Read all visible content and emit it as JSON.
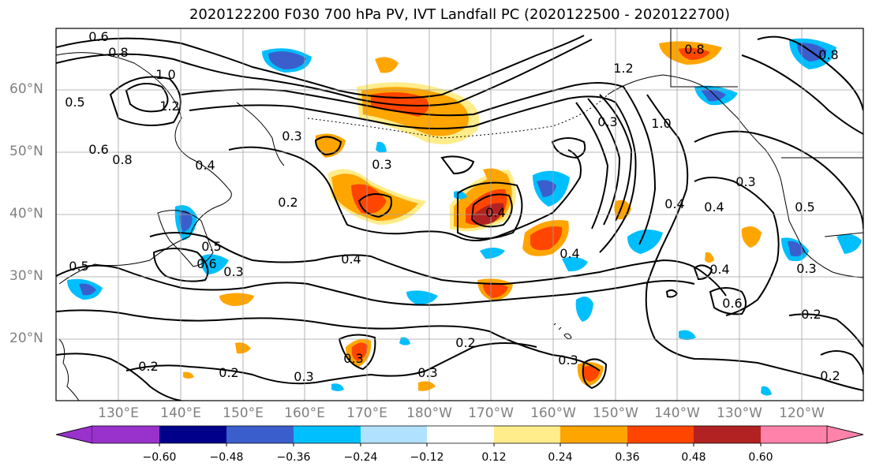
{
  "title": "2020122200 F030 700 hPa PV, IVT Landfall PC (2020122500 - 2020122700)",
  "lat_labels": [
    "60°N",
    "50°N",
    "40°N",
    "30°N",
    "20°N"
  ],
  "lon_labels": [
    "130°E",
    "140°E",
    "150°E",
    "160°E",
    "170°E",
    "180°W",
    "170°W",
    "160°W",
    "150°W",
    "140°W",
    "130°W",
    "120°W"
  ],
  "colorbar": {
    "ticks": [
      "−0.60",
      "−0.48",
      "−0.36",
      "−0.24",
      "−0.12",
      "0.12",
      "0.24",
      "0.36",
      "0.48",
      "0.60"
    ],
    "colors": [
      "#9932cc",
      "#00008b",
      "#3a5fcd",
      "#00bfff",
      "#b0e2ff",
      "#ffffff",
      "#ffec8b",
      "#ffa500",
      "#ff4500",
      "#b22222",
      "#ff82ab"
    ]
  },
  "contour_labels": [
    "0.6",
    "0.8",
    "1.0",
    "1.2",
    "0.5",
    "0.3",
    "0.4",
    "0.2",
    "1.0",
    "0.8",
    "1.2",
    "0.3",
    "0.4",
    "0.3",
    "0.5",
    "0.6",
    "0.4",
    "0.3",
    "0.2",
    "0.3",
    "0.2",
    "0.3",
    "0.2",
    "0.3",
    "0.4",
    "0.4",
    "0.3",
    "0.4",
    "0.6",
    "0.2",
    "0.2",
    "0.8",
    "0.3",
    "0.4",
    "0.6",
    "0.8",
    "0.5",
    "0.5",
    "0.3"
  ],
  "contour_labels_positions_note": ""
}
